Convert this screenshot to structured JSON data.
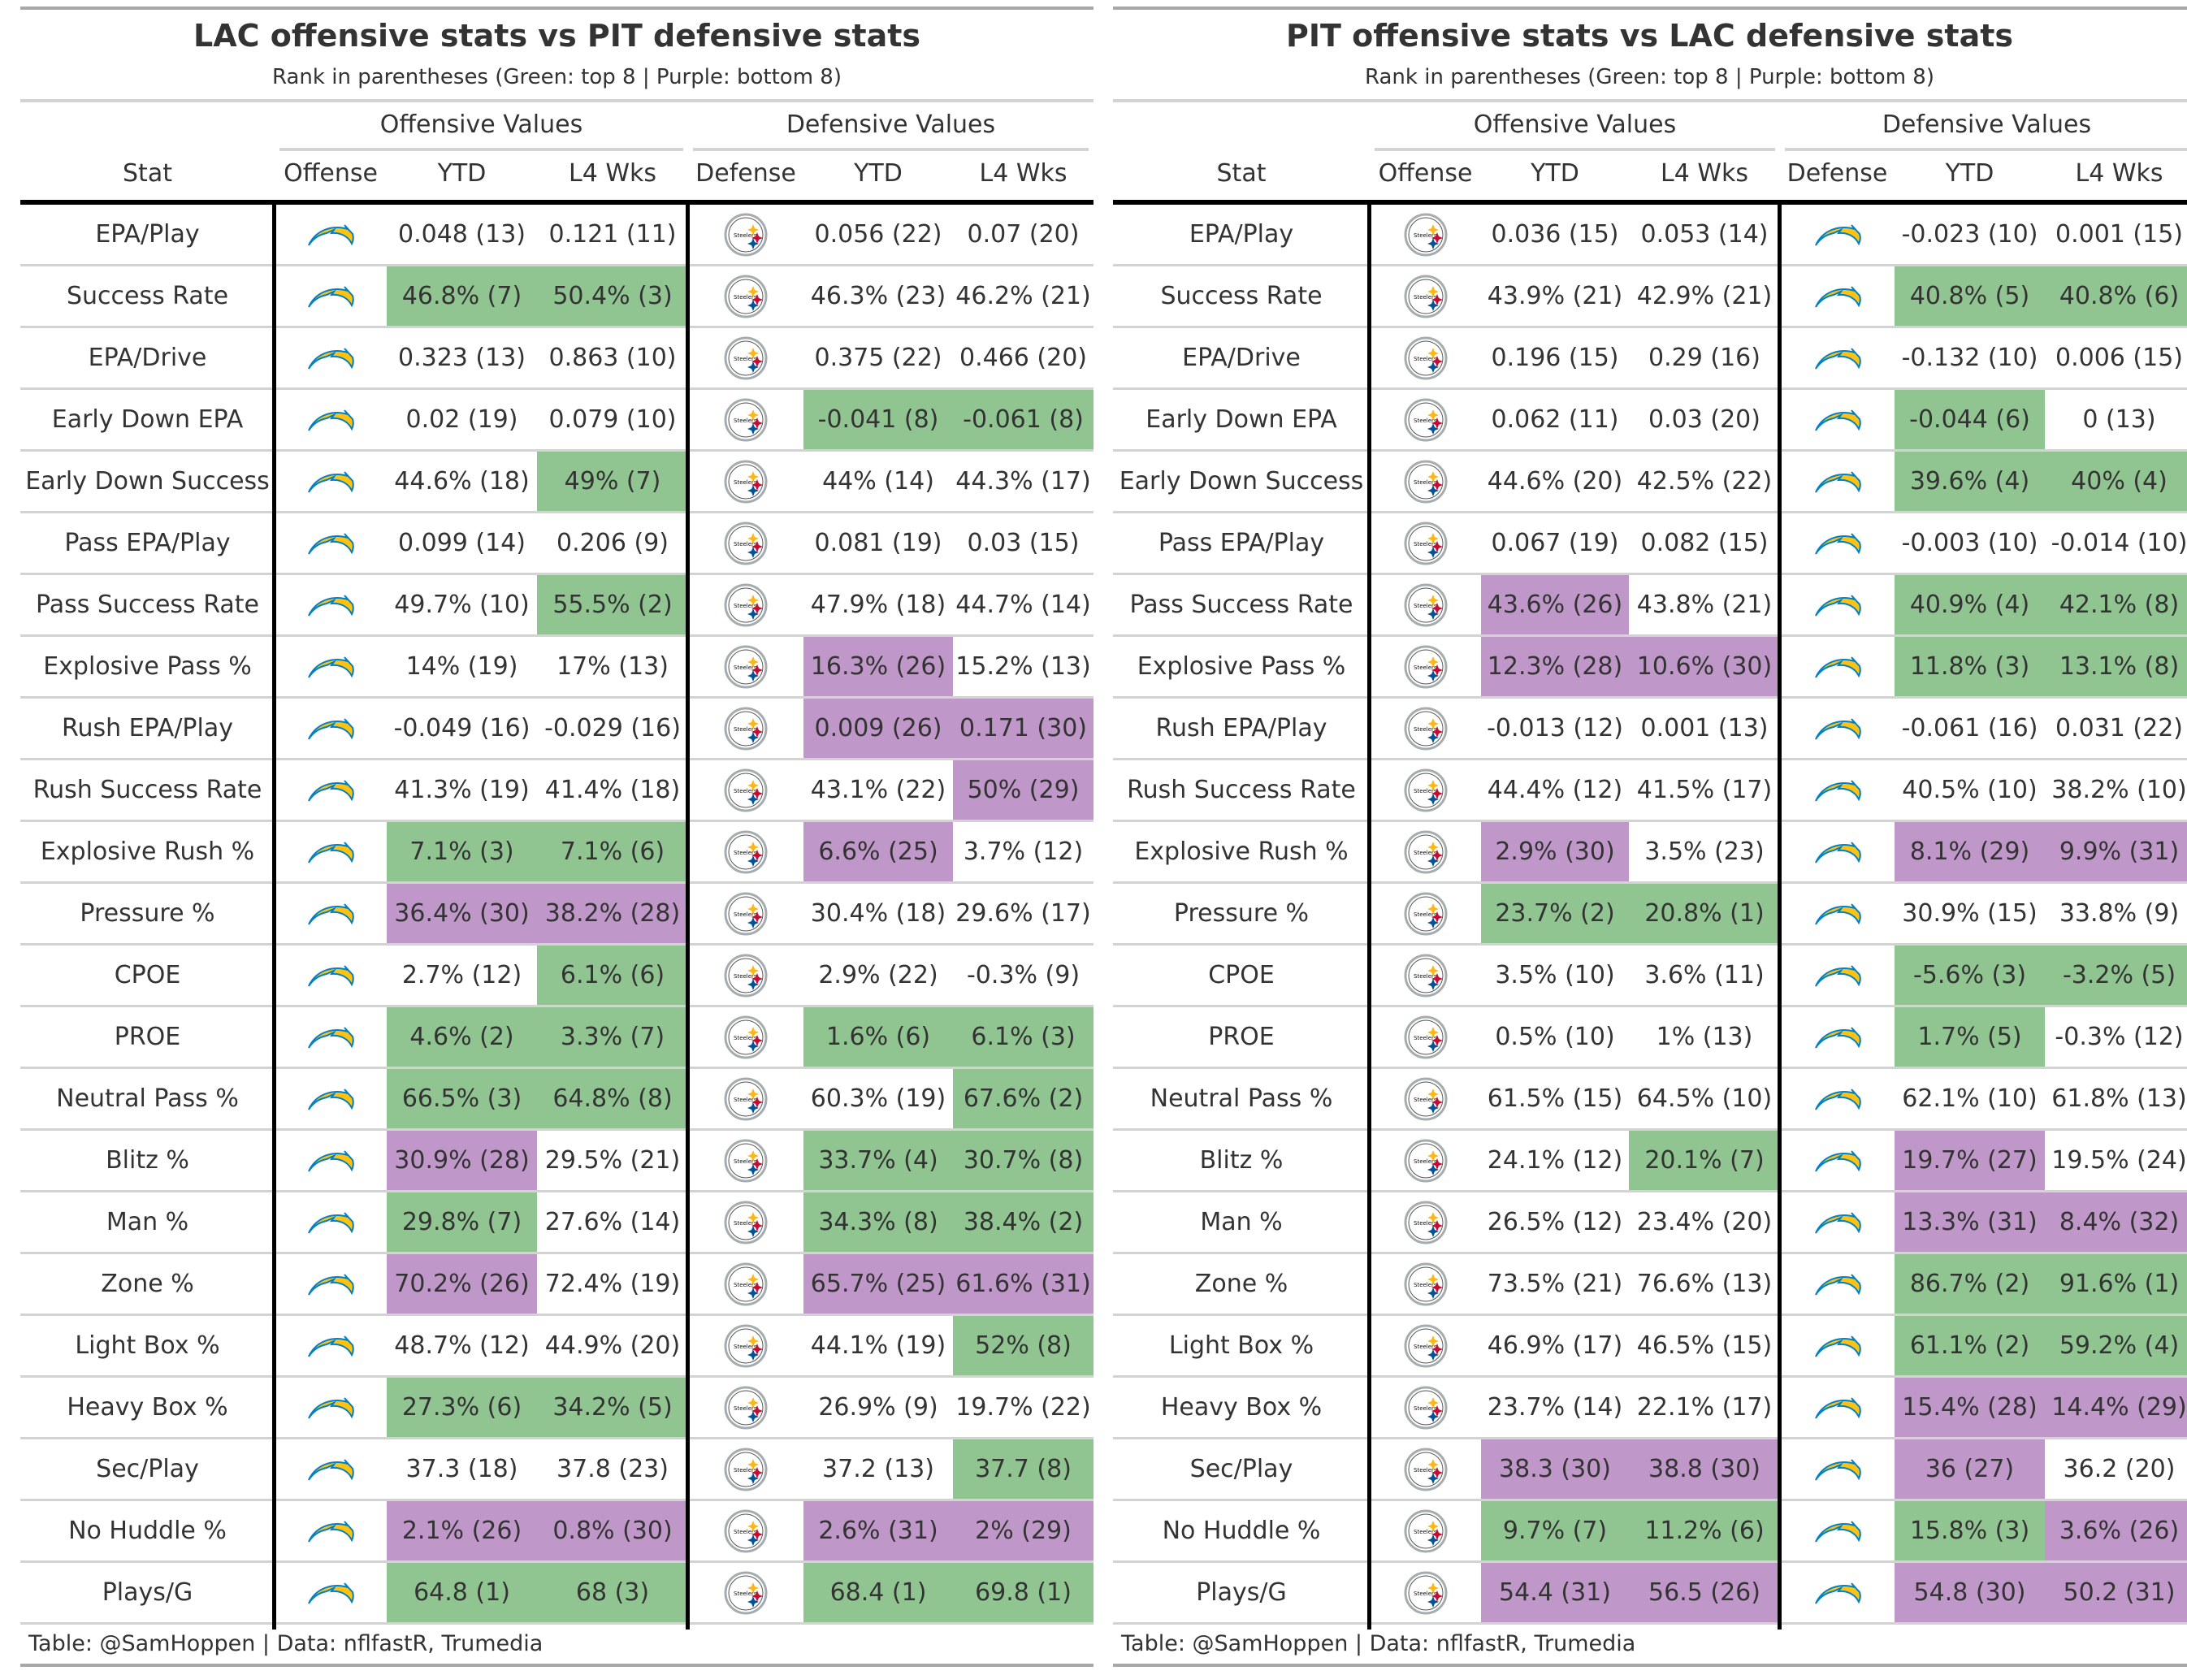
{
  "colors": {
    "green": "#90c591",
    "purple": "#bf97c8"
  },
  "icons": {
    "lac": "chargers-logo-icon",
    "pit": "steelers-logo-icon"
  },
  "tables": [
    {
      "title": "LAC offensive stats vs PIT defensive stats",
      "subtitle": "Rank in parentheses (Green: top 8 | Purple: bottom 8)",
      "spanners": [
        "Offensive Values",
        "Defensive Values"
      ],
      "columns": [
        "Stat",
        "Offense",
        "YTD",
        "L4 Wks",
        "Defense",
        "YTD",
        "L4 Wks"
      ],
      "offense_team": "lac",
      "defense_team": "pit",
      "footer": "Table: @SamHoppen | Data: nflfastR, Trumedia",
      "rows": [
        [
          "EPA/Play",
          "0.048 (13)",
          "0.121 (11)",
          "0.056 (22)",
          "0.07 (20)"
        ],
        [
          "Success Rate",
          "46.8% (7)",
          "50.4% (3)",
          "46.3% (23)",
          "46.2% (21)"
        ],
        [
          "EPA/Drive",
          "0.323 (13)",
          "0.863 (10)",
          "0.375 (22)",
          "0.466 (20)"
        ],
        [
          "Early Down EPA",
          "0.02 (19)",
          "0.079 (10)",
          "-0.041 (8)",
          "-0.061 (8)"
        ],
        [
          "Early Down Success",
          "44.6% (18)",
          "49% (7)",
          "44% (14)",
          "44.3% (17)"
        ],
        [
          "Pass EPA/Play",
          "0.099 (14)",
          "0.206 (9)",
          "0.081 (19)",
          "0.03 (15)"
        ],
        [
          "Pass Success Rate",
          "49.7% (10)",
          "55.5% (2)",
          "47.9% (18)",
          "44.7% (14)"
        ],
        [
          "Explosive Pass %",
          "14% (19)",
          "17% (13)",
          "16.3% (26)",
          "15.2% (13)"
        ],
        [
          "Rush EPA/Play",
          "-0.049 (16)",
          "-0.029 (16)",
          "0.009 (26)",
          "0.171 (30)"
        ],
        [
          "Rush Success Rate",
          "41.3% (19)",
          "41.4% (18)",
          "43.1% (22)",
          "50% (29)"
        ],
        [
          "Explosive Rush %",
          "7.1% (3)",
          "7.1% (6)",
          "6.6% (25)",
          "3.7% (12)"
        ],
        [
          "Pressure %",
          "36.4% (30)",
          "38.2% (28)",
          "30.4% (18)",
          "29.6% (17)"
        ],
        [
          "CPOE",
          "2.7% (12)",
          "6.1% (6)",
          "2.9% (22)",
          "-0.3% (9)"
        ],
        [
          "PROE",
          "4.6% (2)",
          "3.3% (7)",
          "1.6% (6)",
          "6.1% (3)"
        ],
        [
          "Neutral Pass %",
          "66.5% (3)",
          "64.8% (8)",
          "60.3% (19)",
          "67.6% (2)"
        ],
        [
          "Blitz %",
          "30.9% (28)",
          "29.5% (21)",
          "33.7% (4)",
          "30.7% (8)"
        ],
        [
          "Man %",
          "29.8% (7)",
          "27.6% (14)",
          "34.3% (8)",
          "38.4% (2)"
        ],
        [
          "Zone %",
          "70.2% (26)",
          "72.4% (19)",
          "65.7% (25)",
          "61.6% (31)"
        ],
        [
          "Light Box %",
          "48.7% (12)",
          "44.9% (20)",
          "44.1% (19)",
          "52% (8)"
        ],
        [
          "Heavy Box %",
          "27.3% (6)",
          "34.2% (5)",
          "26.9% (9)",
          "19.7% (22)"
        ],
        [
          "Sec/Play",
          "37.3 (18)",
          "37.8 (23)",
          "37.2 (13)",
          "37.7 (8)"
        ],
        [
          "No Huddle %",
          "2.1% (26)",
          "0.8% (30)",
          "2.6% (31)",
          "2% (29)"
        ],
        [
          "Plays/G",
          "64.8 (1)",
          "68 (3)",
          "68.4 (1)",
          "69.8 (1)"
        ]
      ]
    },
    {
      "title": "PIT offensive stats vs LAC defensive stats",
      "subtitle": "Rank in parentheses (Green: top 8 | Purple: bottom 8)",
      "spanners": [
        "Offensive Values",
        "Defensive Values"
      ],
      "columns": [
        "Stat",
        "Offense",
        "YTD",
        "L4 Wks",
        "Defense",
        "YTD",
        "L4 Wks"
      ],
      "offense_team": "pit",
      "defense_team": "lac",
      "footer": "Table: @SamHoppen | Data: nflfastR, Trumedia",
      "rows": [
        [
          "EPA/Play",
          "0.036 (15)",
          "0.053 (14)",
          "-0.023 (10)",
          "0.001 (15)"
        ],
        [
          "Success Rate",
          "43.9% (21)",
          "42.9% (21)",
          "40.8% (5)",
          "40.8% (6)"
        ],
        [
          "EPA/Drive",
          "0.196 (15)",
          "0.29 (16)",
          "-0.132 (10)",
          "0.006 (15)"
        ],
        [
          "Early Down EPA",
          "0.062 (11)",
          "0.03 (20)",
          "-0.044 (6)",
          "0 (13)"
        ],
        [
          "Early Down Success",
          "44.6% (20)",
          "42.5% (22)",
          "39.6% (4)",
          "40% (4)"
        ],
        [
          "Pass EPA/Play",
          "0.067 (19)",
          "0.082 (15)",
          "-0.003 (10)",
          "-0.014 (10)"
        ],
        [
          "Pass Success Rate",
          "43.6% (26)",
          "43.8% (21)",
          "40.9% (4)",
          "42.1% (8)"
        ],
        [
          "Explosive Pass %",
          "12.3% (28)",
          "10.6% (30)",
          "11.8% (3)",
          "13.1% (8)"
        ],
        [
          "Rush EPA/Play",
          "-0.013 (12)",
          "0.001 (13)",
          "-0.061 (16)",
          "0.031 (22)"
        ],
        [
          "Rush Success Rate",
          "44.4% (12)",
          "41.5% (17)",
          "40.5% (10)",
          "38.2% (10)"
        ],
        [
          "Explosive Rush %",
          "2.9% (30)",
          "3.5% (23)",
          "8.1% (29)",
          "9.9% (31)"
        ],
        [
          "Pressure %",
          "23.7% (2)",
          "20.8% (1)",
          "30.9% (15)",
          "33.8% (9)"
        ],
        [
          "CPOE",
          "3.5% (10)",
          "3.6% (11)",
          "-5.6% (3)",
          "-3.2% (5)"
        ],
        [
          "PROE",
          "0.5% (10)",
          "1% (13)",
          "1.7% (5)",
          "-0.3% (12)"
        ],
        [
          "Neutral Pass %",
          "61.5% (15)",
          "64.5% (10)",
          "62.1% (10)",
          "61.8% (13)"
        ],
        [
          "Blitz %",
          "24.1% (12)",
          "20.1% (7)",
          "19.7% (27)",
          "19.5% (24)"
        ],
        [
          "Man %",
          "26.5% (12)",
          "23.4% (20)",
          "13.3% (31)",
          "8.4% (32)"
        ],
        [
          "Zone %",
          "73.5% (21)",
          "76.6% (13)",
          "86.7% (2)",
          "91.6% (1)"
        ],
        [
          "Light Box %",
          "46.9% (17)",
          "46.5% (15)",
          "61.1% (2)",
          "59.2% (4)"
        ],
        [
          "Heavy Box %",
          "23.7% (14)",
          "22.1% (17)",
          "15.4% (28)",
          "14.4% (29)"
        ],
        [
          "Sec/Play",
          "38.3 (30)",
          "38.8 (30)",
          "36 (27)",
          "36.2 (20)"
        ],
        [
          "No Huddle %",
          "9.7% (7)",
          "11.2% (6)",
          "15.8% (3)",
          "3.6% (26)"
        ],
        [
          "Plays/G",
          "54.4 (31)",
          "56.5 (26)",
          "54.8 (30)",
          "50.2 (31)"
        ]
      ]
    }
  ]
}
